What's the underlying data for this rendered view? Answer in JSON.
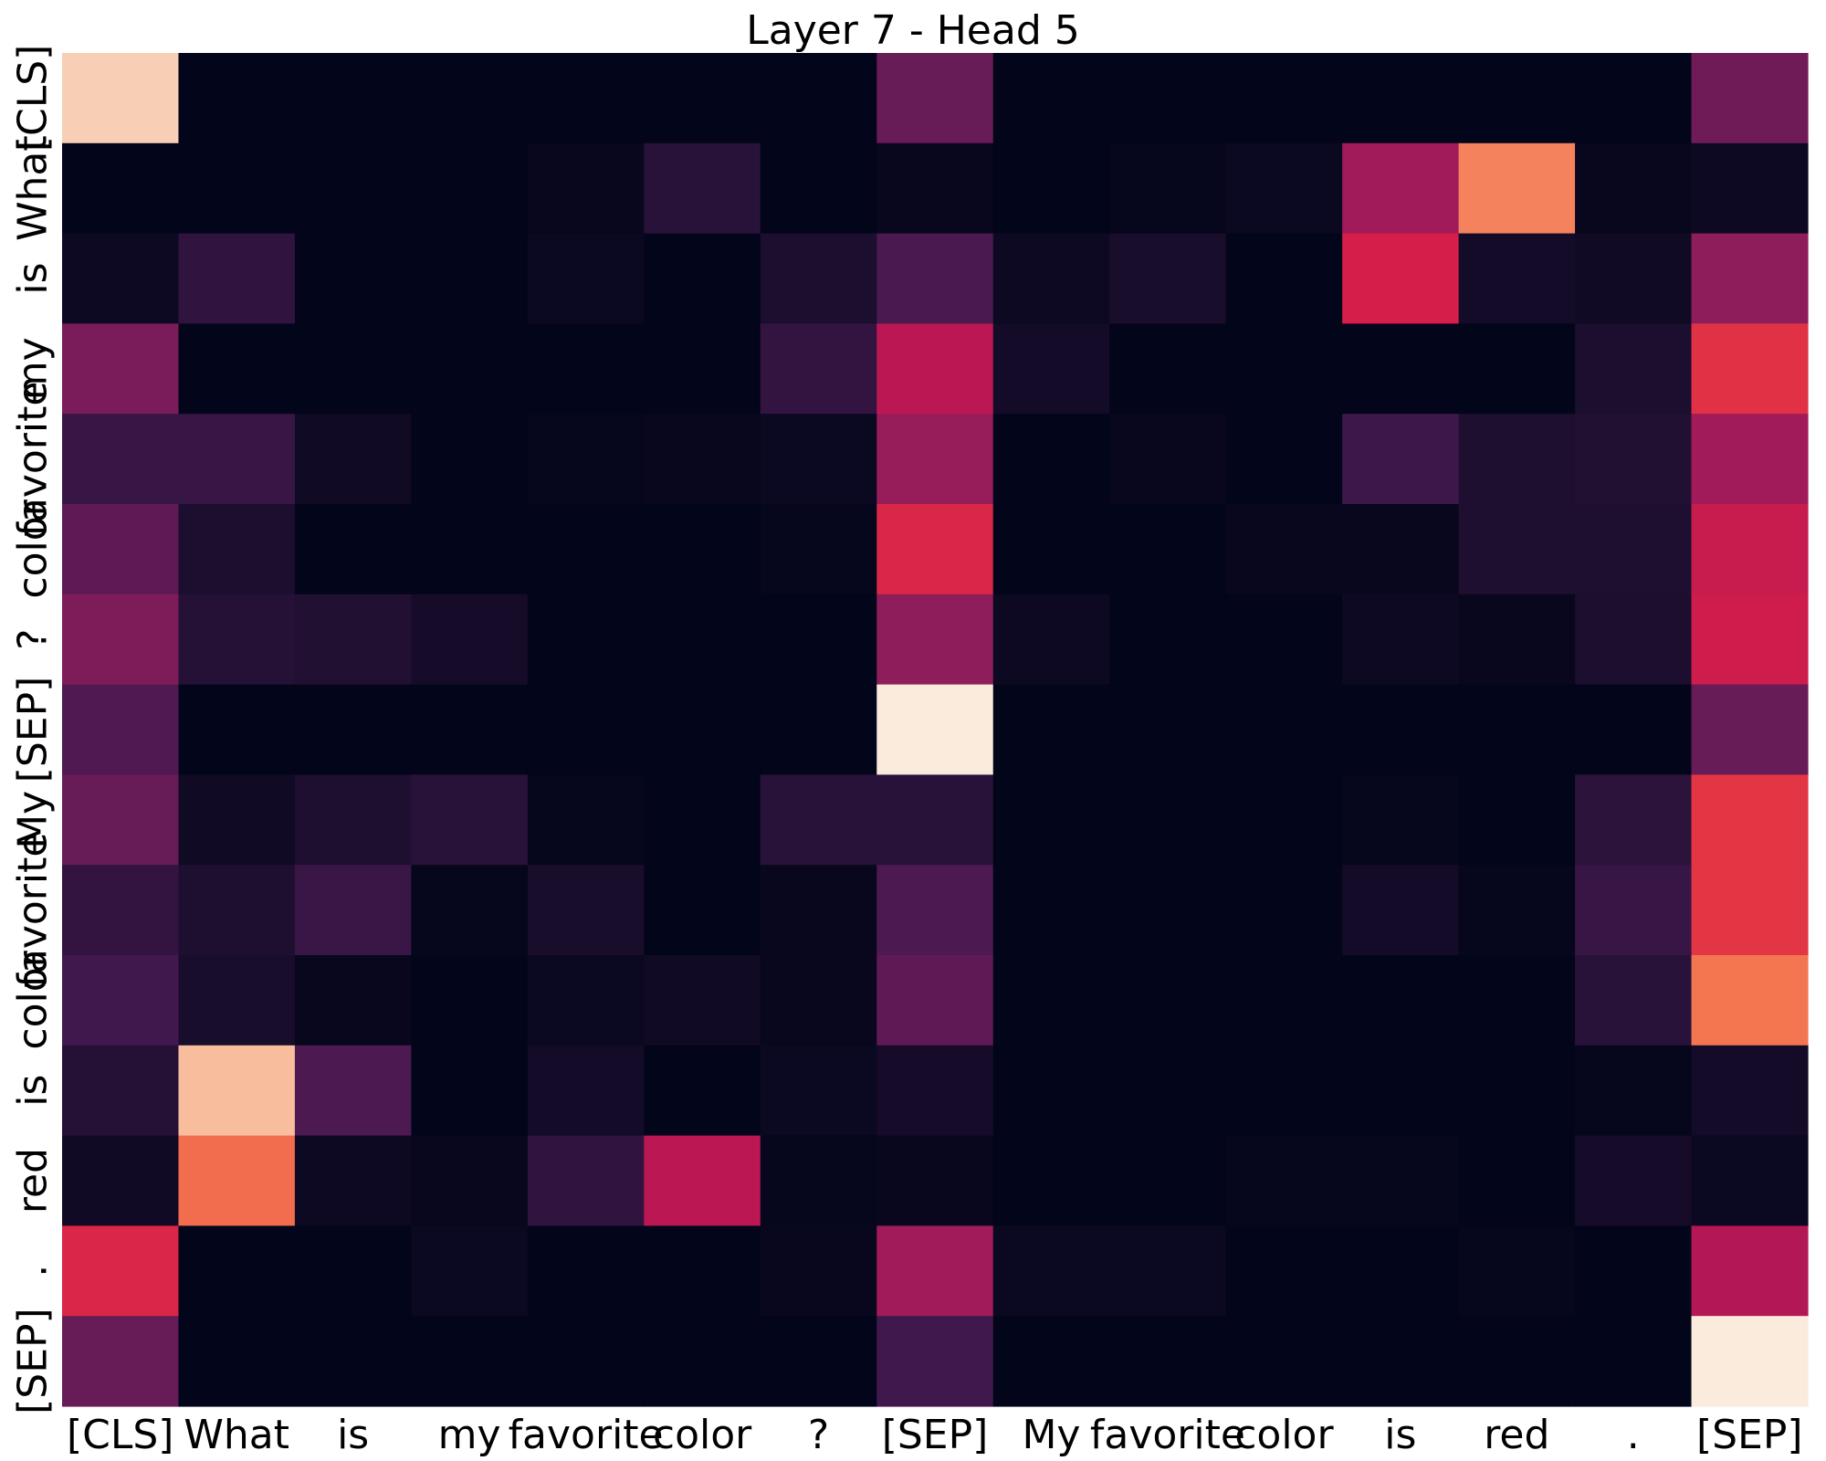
{
  "chart_data": {
    "type": "heatmap",
    "title": "Layer 7 - Head 5",
    "xlabel": "",
    "ylabel": "",
    "x_categories": [
      "[CLS]",
      "What",
      "is",
      "my",
      "favorite",
      "color",
      "?",
      "[SEP]",
      "My",
      "favorite",
      "color",
      "is",
      "red",
      ".",
      "[SEP]"
    ],
    "y_categories": [
      "[CLS]",
      "What",
      "is",
      "my",
      "favorite",
      "color",
      "?",
      "[SEP]",
      "My",
      "favorite",
      "color",
      "is",
      "red",
      ".",
      "[SEP]"
    ],
    "colormap": "rocket",
    "colorbar": false,
    "grid": false,
    "value_range": [
      0,
      1
    ],
    "values": [
      [
        0.95,
        0.0,
        0.0,
        0.0,
        0.0,
        0.0,
        0.0,
        0.3,
        0.0,
        0.0,
        0.0,
        0.0,
        0.0,
        0.0,
        0.32
      ],
      [
        0.0,
        0.0,
        0.0,
        0.0,
        0.02,
        0.13,
        0.0,
        0.02,
        0.0,
        0.01,
        0.03,
        0.45,
        0.82,
        0.02,
        0.04
      ],
      [
        0.04,
        0.15,
        0.0,
        0.0,
        0.03,
        0.0,
        0.09,
        0.22,
        0.04,
        0.08,
        0.0,
        0.6,
        0.06,
        0.05,
        0.4
      ],
      [
        0.35,
        0.0,
        0.0,
        0.0,
        0.0,
        0.0,
        0.16,
        0.52,
        0.06,
        0.0,
        0.0,
        0.0,
        0.0,
        0.09,
        0.65
      ],
      [
        0.17,
        0.17,
        0.05,
        0.0,
        0.01,
        0.02,
        0.03,
        0.42,
        0.0,
        0.02,
        0.0,
        0.19,
        0.1,
        0.11,
        0.45
      ],
      [
        0.28,
        0.09,
        0.0,
        0.0,
        0.0,
        0.0,
        0.01,
        0.62,
        0.0,
        0.0,
        0.02,
        0.02,
        0.1,
        0.1,
        0.56
      ],
      [
        0.36,
        0.12,
        0.11,
        0.07,
        0.0,
        0.0,
        0.0,
        0.4,
        0.04,
        0.0,
        0.0,
        0.04,
        0.02,
        0.09,
        0.58
      ],
      [
        0.24,
        0.0,
        0.0,
        0.0,
        0.0,
        0.0,
        0.0,
        1.0,
        0.0,
        0.0,
        0.0,
        0.0,
        0.0,
        0.0,
        0.3
      ],
      [
        0.3,
        0.05,
        0.1,
        0.13,
        0.01,
        0.0,
        0.13,
        0.13,
        0.0,
        0.0,
        0.0,
        0.01,
        0.0,
        0.14,
        0.66
      ],
      [
        0.16,
        0.1,
        0.18,
        0.01,
        0.08,
        0.0,
        0.02,
        0.23,
        0.0,
        0.0,
        0.0,
        0.06,
        0.01,
        0.17,
        0.66
      ],
      [
        0.2,
        0.08,
        0.02,
        0.0,
        0.03,
        0.05,
        0.02,
        0.28,
        0.0,
        0.0,
        0.0,
        0.0,
        0.0,
        0.13,
        0.8
      ],
      [
        0.12,
        0.92,
        0.23,
        0.0,
        0.06,
        0.0,
        0.03,
        0.07,
        0.0,
        0.0,
        0.0,
        0.0,
        0.0,
        0.01,
        0.06
      ],
      [
        0.05,
        0.78,
        0.04,
        0.02,
        0.15,
        0.52,
        0.01,
        0.02,
        0.0,
        0.0,
        0.01,
        0.01,
        0.0,
        0.07,
        0.03
      ],
      [
        0.62,
        0.0,
        0.0,
        0.03,
        0.0,
        0.0,
        0.02,
        0.45,
        0.03,
        0.03,
        0.0,
        0.0,
        0.01,
        0.0,
        0.5
      ],
      [
        0.3,
        0.0,
        0.0,
        0.0,
        0.0,
        0.0,
        0.0,
        0.2,
        0.0,
        0.0,
        0.0,
        0.0,
        0.0,
        0.0,
        1.0
      ]
    ]
  }
}
